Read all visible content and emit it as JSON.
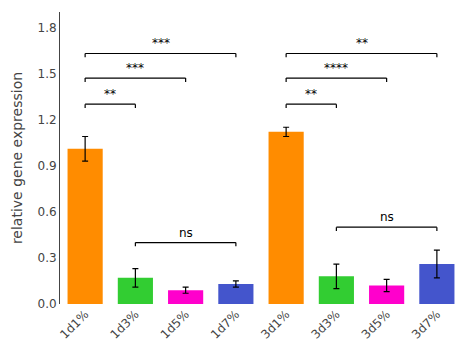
{
  "chart_data": {
    "type": "bar",
    "categories": [
      "1d1%",
      "1d3%",
      "1d5%",
      "1d7%",
      "3d1%",
      "3d3%",
      "3d5%",
      "3d7%"
    ],
    "values": [
      1.01,
      0.17,
      0.09,
      0.13,
      1.12,
      0.18,
      0.12,
      0.26
    ],
    "errors": [
      0.08,
      0.06,
      0.02,
      0.02,
      0.03,
      0.08,
      0.04,
      0.09
    ],
    "colors": [
      "#FF8C00",
      "#32CD32",
      "#FF00CC",
      "#4455CC",
      "#FF8C00",
      "#32CD32",
      "#FF00CC",
      "#4455CC"
    ],
    "ylabel": "relative gene expression",
    "ylim": [
      0,
      1.9
    ],
    "yticks": [
      0.0,
      0.3,
      0.6,
      0.9,
      1.2,
      1.5,
      1.8
    ],
    "grid": false,
    "brackets": [
      {
        "from": "1d1%",
        "to": "1d3%",
        "y": 1.3,
        "label": "**"
      },
      {
        "from": "1d1%",
        "to": "1d5%",
        "y": 1.47,
        "label": "***"
      },
      {
        "from": "1d1%",
        "to": "1d7%",
        "y": 1.63,
        "label": "***"
      },
      {
        "from": "3d1%",
        "to": "3d3%",
        "y": 1.3,
        "label": "**"
      },
      {
        "from": "3d1%",
        "to": "3d5%",
        "y": 1.47,
        "label": "****"
      },
      {
        "from": "3d1%",
        "to": "3d7%",
        "y": 1.63,
        "label": "**"
      },
      {
        "from": "1d3%",
        "to": "1d7%",
        "y": 0.4,
        "label": "ns"
      },
      {
        "from": "3d3%",
        "to": "3d7%",
        "y": 0.5,
        "label": "ns"
      }
    ]
  }
}
